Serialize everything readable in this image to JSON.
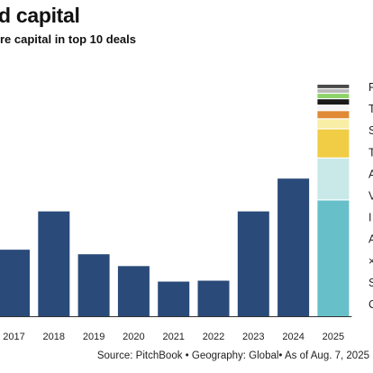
{
  "header": {
    "title": "d capital",
    "subtitle": "re capital in top 10 deals"
  },
  "footer": {
    "source": "Source: PitchBook • Geography: Global• As of Aug. 7, 2025"
  },
  "colors": {
    "bar": "#2a4a7a",
    "axis": "#333333",
    "legend_text": "#222222"
  },
  "chart_data": {
    "type": "bar",
    "categories": [
      "2017",
      "2018",
      "2019",
      "2020",
      "2021",
      "2022",
      "2023",
      "2024",
      "2025"
    ],
    "values": [
      73,
      115,
      68,
      55,
      38,
      39,
      115,
      151,
      254
    ],
    "ylim": [
      0,
      254
    ],
    "title": "d capital",
    "subtitle": "re capital in top 10 deals",
    "stacked_final": {
      "category": "2025",
      "segments": [
        {
          "value": 127,
          "color": "#67c0c9"
        },
        {
          "value": 46,
          "color": "#c9e9e9"
        },
        {
          "value": 32,
          "color": "#f0cd45"
        },
        {
          "value": 11,
          "color": "#f8eea6"
        },
        {
          "value": 9,
          "color": "#e08a36"
        },
        {
          "value": 6,
          "color": "#f4f4f4"
        },
        {
          "value": 7,
          "color": "#1a1a1a"
        },
        {
          "value": 6,
          "color": "#8dd26a"
        },
        {
          "value": 5,
          "color": "#b7b7b7"
        },
        {
          "value": 5,
          "color": "#4a4a4a"
        }
      ]
    },
    "legend": [
      {
        "label": "F",
        "color": "#4a4a4a"
      },
      {
        "label": "T",
        "color": "#1a1a1a"
      },
      {
        "label": "S",
        "color": "#e08a36"
      },
      {
        "label": "T",
        "color": "#f0cd45"
      },
      {
        "label": "A",
        "color": "#f0cd45"
      },
      {
        "label": "V",
        "color": "#c9e9e9"
      },
      {
        "label": "I",
        "color": "#67c0c9"
      },
      {
        "label": "A",
        "color": "#67c0c9"
      },
      {
        "label": "×",
        "color": "#67c0c9"
      },
      {
        "label": "S",
        "color": "#67c0c9"
      },
      {
        "label": "C",
        "color": "#67c0c9"
      }
    ]
  }
}
